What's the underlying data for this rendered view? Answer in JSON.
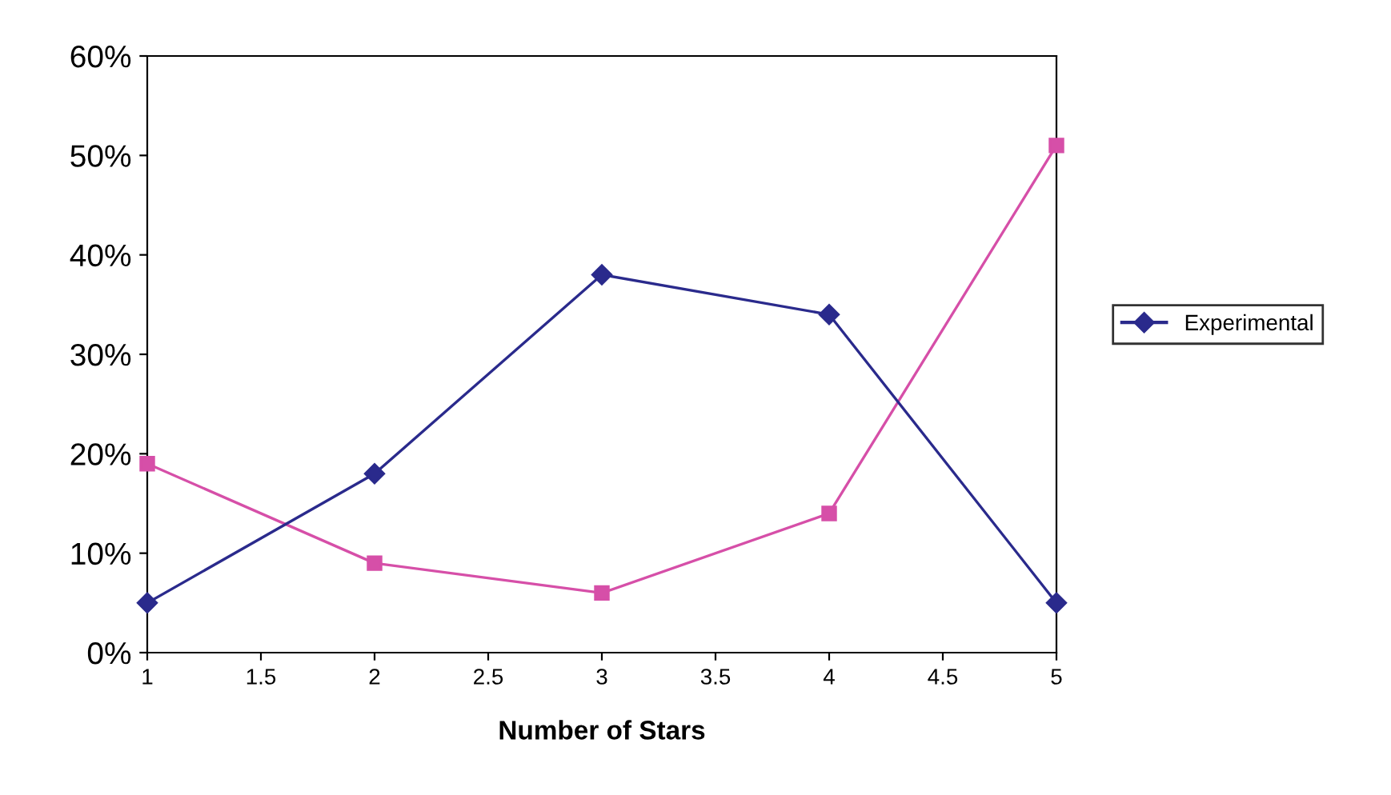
{
  "chart_data": {
    "type": "line",
    "xlabel": "Number of Stars",
    "x": [
      1,
      2,
      3,
      4,
      5
    ],
    "series": [
      {
        "color": "#d64fa8",
        "marker": "square",
        "values": [
          19,
          9,
          6,
          14,
          51
        ]
      },
      {
        "name": "Experimental",
        "color": "#2a2a8c",
        "marker": "diamond",
        "values": [
          5,
          18,
          38,
          34,
          5
        ]
      }
    ],
    "xlim": [
      1,
      5
    ],
    "xticks": [
      1,
      1.5,
      2,
      2.5,
      3,
      3.5,
      4,
      4.5,
      5
    ],
    "ylim": [
      0,
      60
    ],
    "yticks": [
      {
        "value": 0,
        "label": "0%"
      },
      {
        "value": 10,
        "label": "10%"
      },
      {
        "value": 20,
        "label": "20%"
      },
      {
        "value": 30,
        "label": "30%"
      },
      {
        "value": 40,
        "label": "40%"
      },
      {
        "value": 50,
        "label": "50%"
      },
      {
        "value": 60,
        "label": "60%"
      }
    ],
    "grid": false,
    "legend": "right",
    "line_style": "solid"
  }
}
